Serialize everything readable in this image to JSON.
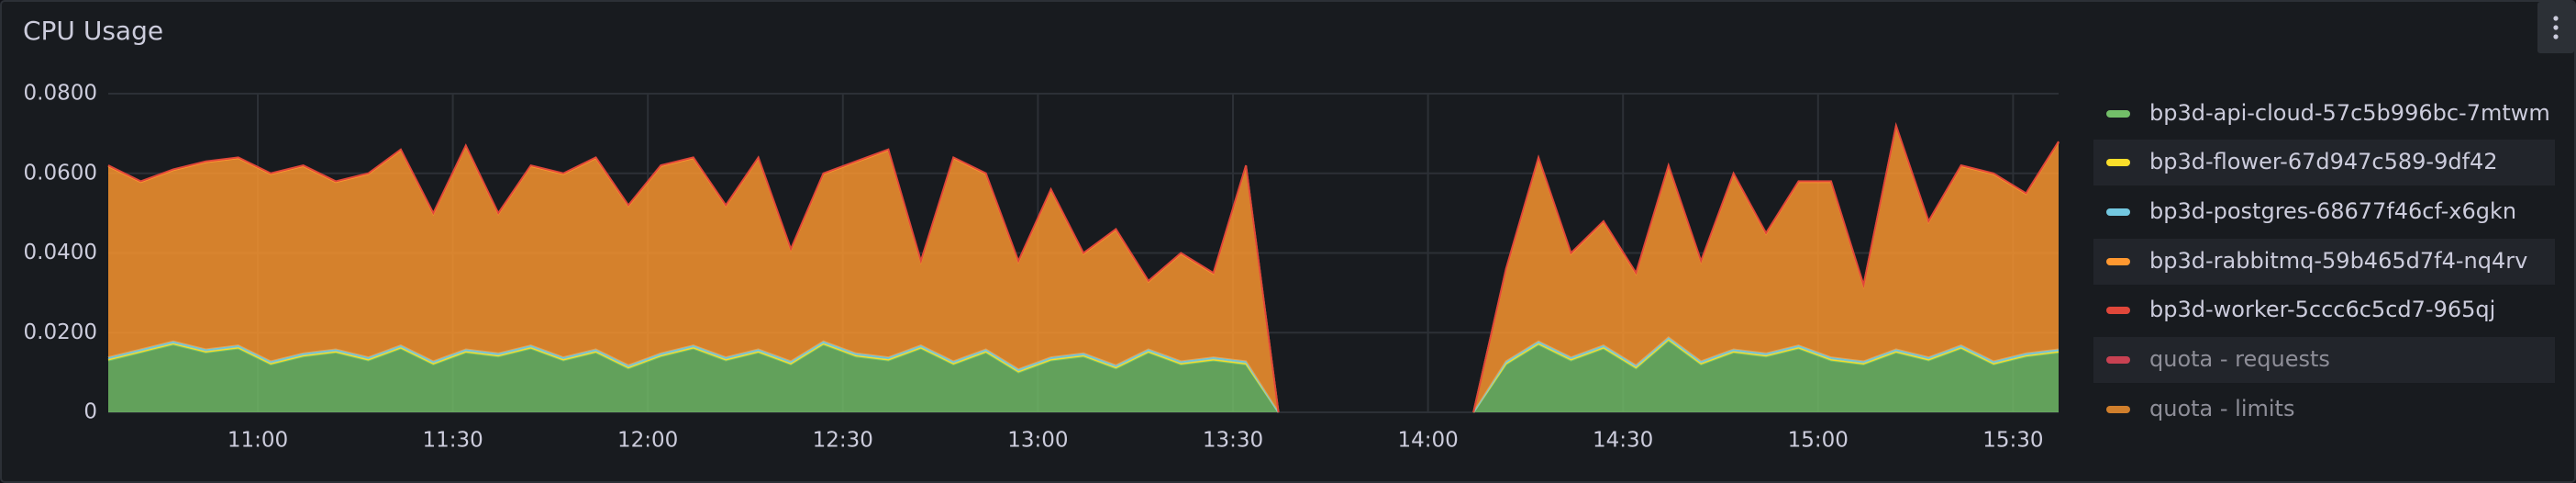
{
  "chart_data": {
    "type": "area",
    "title": "CPU Usage",
    "stacked": true,
    "grid": true,
    "legend": "right",
    "x": [
      637,
      642,
      647,
      652,
      657,
      662,
      667,
      672,
      677,
      682,
      687,
      692,
      697,
      702,
      707,
      712,
      717,
      722,
      727,
      732,
      737,
      742,
      747,
      752,
      757,
      762,
      767,
      772,
      777,
      782,
      787,
      792,
      797,
      802,
      807,
      812,
      817,
      822,
      827,
      832,
      837,
      842,
      847,
      852,
      857,
      862,
      867,
      872,
      877,
      882,
      887,
      892,
      897,
      902,
      907,
      912,
      917,
      922,
      927,
      932,
      937
    ],
    "xlim": [
      637,
      937
    ],
    "xticks": [
      {
        "value": 660,
        "label": "11:00"
      },
      {
        "value": 690,
        "label": "11:30"
      },
      {
        "value": 720,
        "label": "12:00"
      },
      {
        "value": 750,
        "label": "12:30"
      },
      {
        "value": 780,
        "label": "13:00"
      },
      {
        "value": 810,
        "label": "13:30"
      },
      {
        "value": 840,
        "label": "14:00"
      },
      {
        "value": 870,
        "label": "14:30"
      },
      {
        "value": 900,
        "label": "15:00"
      },
      {
        "value": 930,
        "label": "15:30"
      }
    ],
    "ylim": [
      0,
      0.08
    ],
    "yticks": [
      0,
      {
        "value": 0.02,
        "label": "0.0200"
      },
      {
        "value": 0.04,
        "label": "0.0400"
      },
      {
        "value": 0.06,
        "label": "0.0600"
      },
      {
        "value": 0.08,
        "label": "0.0800"
      }
    ],
    "series": [
      {
        "name": "bp3d-api-cloud-57c5b996bc-7mtwm",
        "color": "#73BF69",
        "values": [
          0.013,
          0.015,
          0.017,
          0.015,
          0.016,
          0.012,
          0.014,
          0.015,
          0.013,
          0.016,
          0.012,
          0.015,
          0.014,
          0.016,
          0.013,
          0.015,
          0.011,
          0.014,
          0.016,
          0.013,
          0.015,
          0.012,
          0.017,
          0.014,
          0.013,
          0.016,
          0.012,
          0.015,
          0.01,
          0.013,
          0.014,
          0.011,
          0.015,
          0.012,
          0.013,
          0.012,
          0,
          null,
          null,
          null,
          null,
          null,
          0,
          0.012,
          0.017,
          0.013,
          0.016,
          0.011,
          0.018,
          0.012,
          0.015,
          0.014,
          0.016,
          0.013,
          0.012,
          0.015,
          0.013,
          0.016,
          0.012,
          0.014,
          0.015
        ]
      },
      {
        "name": "bp3d-flower-67d947c589-9df42",
        "color": "#FADE2A",
        "values": [
          0.0003,
          0.0003,
          0.0003,
          0.0003,
          0.0003,
          0.0003,
          0.0003,
          0.0003,
          0.0003,
          0.0003,
          0.0003,
          0.0003,
          0.0003,
          0.0003,
          0.0003,
          0.0003,
          0.0003,
          0.0003,
          0.0003,
          0.0003,
          0.0003,
          0.0003,
          0.0003,
          0.0003,
          0.0003,
          0.0003,
          0.0003,
          0.0003,
          0.0003,
          0.0003,
          0.0003,
          0.0003,
          0.0003,
          0.0003,
          0.0003,
          0.0003,
          0,
          null,
          null,
          null,
          null,
          null,
          0,
          0.0003,
          0.0003,
          0.0003,
          0.0003,
          0.0003,
          0.0003,
          0.0003,
          0.0003,
          0.0003,
          0.0003,
          0.0003,
          0.0003,
          0.0003,
          0.0003,
          0.0003,
          0.0003,
          0.0003,
          0.0003
        ]
      },
      {
        "name": "bp3d-postgres-68677f46cf-x6gkn",
        "color": "#73C8E0",
        "values": [
          0.0005,
          0.0005,
          0.0005,
          0.0005,
          0.0005,
          0.0005,
          0.0005,
          0.0005,
          0.0005,
          0.0005,
          0.0005,
          0.0005,
          0.0005,
          0.0005,
          0.0005,
          0.0005,
          0.0005,
          0.0005,
          0.0005,
          0.0005,
          0.0005,
          0.0005,
          0.0005,
          0.0005,
          0.0005,
          0.0005,
          0.0005,
          0.0005,
          0.0005,
          0.0005,
          0.0005,
          0.0005,
          0.0005,
          0.0005,
          0.0005,
          0.0005,
          0,
          null,
          null,
          null,
          null,
          null,
          0,
          0.0005,
          0.0005,
          0.0005,
          0.0005,
          0.0005,
          0.0005,
          0.0005,
          0.0005,
          0.0005,
          0.0005,
          0.0005,
          0.0005,
          0.0005,
          0.0005,
          0.0005,
          0.0005,
          0.0005,
          0.0005
        ]
      },
      {
        "name": "bp3d-rabbitmq-59b465d7f4-nq4rv",
        "color": "#FF9830",
        "values": [
          0.048,
          0.042,
          0.043,
          0.047,
          0.047,
          0.047,
          0.047,
          0.042,
          0.046,
          0.049,
          0.037,
          0.051,
          0.035,
          0.045,
          0.046,
          0.048,
          0.04,
          0.047,
          0.047,
          0.038,
          0.048,
          0.028,
          0.042,
          0.048,
          0.052,
          0.021,
          0.051,
          0.044,
          0.027,
          0.042,
          0.025,
          0.034,
          0.017,
          0.027,
          0.021,
          0.049,
          0,
          null,
          null,
          null,
          null,
          null,
          0,
          0.023,
          0.046,
          0.026,
          0.031,
          0.023,
          0.043,
          0.025,
          0.044,
          0.03,
          0.041,
          0.044,
          0.019,
          0.056,
          0.034,
          0.045,
          0.047,
          0.04,
          0.052
        ]
      },
      {
        "name": "bp3d-worker-5ccc6c5cd7-965qj",
        "color": "#E0473A",
        "values": [
          0.0002,
          0.0002,
          0.0002,
          0.0002,
          0.0002,
          0.0002,
          0.0002,
          0.0002,
          0.0002,
          0.0002,
          0.0002,
          0.0002,
          0.0002,
          0.0002,
          0.0002,
          0.0002,
          0.0002,
          0.0002,
          0.0002,
          0.0002,
          0.0002,
          0.0002,
          0.0002,
          0.0002,
          0.0002,
          0.0002,
          0.0002,
          0.0002,
          0.0002,
          0.0002,
          0.0002,
          0.0002,
          0.0002,
          0.0002,
          0.0002,
          0.0002,
          0,
          null,
          null,
          null,
          null,
          null,
          0,
          0.0002,
          0.0002,
          0.0002,
          0.0002,
          0.0002,
          0.0002,
          0.0002,
          0.0002,
          0.0002,
          0.0002,
          0.0002,
          0.0002,
          0.0002,
          0.0002,
          0.0002,
          0.0002,
          0.0002,
          0.0002
        ]
      },
      {
        "name": "quota - requests",
        "color": "#F2495C",
        "hidden": true,
        "values": [
          null,
          null,
          null,
          null,
          null,
          null,
          null,
          null,
          null,
          null,
          null,
          null,
          null,
          null,
          null,
          null,
          null,
          null,
          null,
          null,
          null,
          null,
          null,
          null,
          null,
          null,
          null,
          null,
          null,
          null,
          null,
          null,
          null,
          null,
          null,
          null,
          null,
          null,
          null,
          null,
          null,
          null,
          null,
          null,
          null,
          null,
          null,
          null,
          null,
          null,
          null,
          null,
          null,
          null,
          null,
          null,
          null,
          null,
          null,
          null,
          null
        ]
      },
      {
        "name": "quota - limits",
        "color": "#FF9830",
        "hidden": true,
        "values": [
          null,
          null,
          null,
          null,
          null,
          null,
          null,
          null,
          null,
          null,
          null,
          null,
          null,
          null,
          null,
          null,
          null,
          null,
          null,
          null,
          null,
          null,
          null,
          null,
          null,
          null,
          null,
          null,
          null,
          null,
          null,
          null,
          null,
          null,
          null,
          null,
          null,
          null,
          null,
          null,
          null,
          null,
          null,
          null,
          null,
          null,
          null,
          null,
          null,
          null,
          null,
          null,
          null,
          null,
          null,
          null,
          null,
          null,
          null,
          null,
          null
        ]
      }
    ]
  }
}
